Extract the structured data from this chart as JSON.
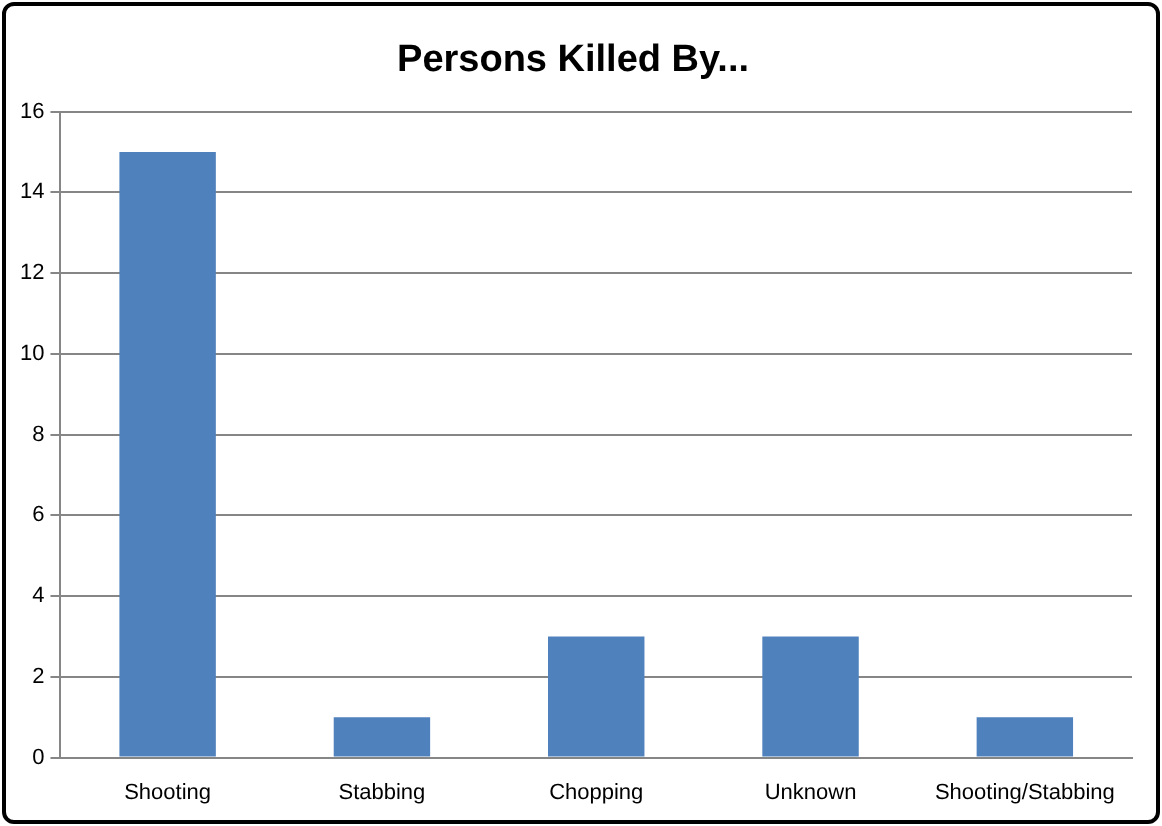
{
  "chart_data": {
    "type": "bar",
    "title": "Persons Killed By...",
    "categories": [
      "Shooting",
      "Stabbing",
      "Chopping",
      "Unknown",
      "Shooting/Stabbing"
    ],
    "values": [
      15,
      1,
      3,
      3,
      1
    ],
    "color": "#4f81bd",
    "ylim": [
      0,
      16
    ],
    "yticks": [
      0,
      2,
      4,
      6,
      8,
      10,
      12,
      14,
      16
    ],
    "grid": "y",
    "legend": false
  }
}
